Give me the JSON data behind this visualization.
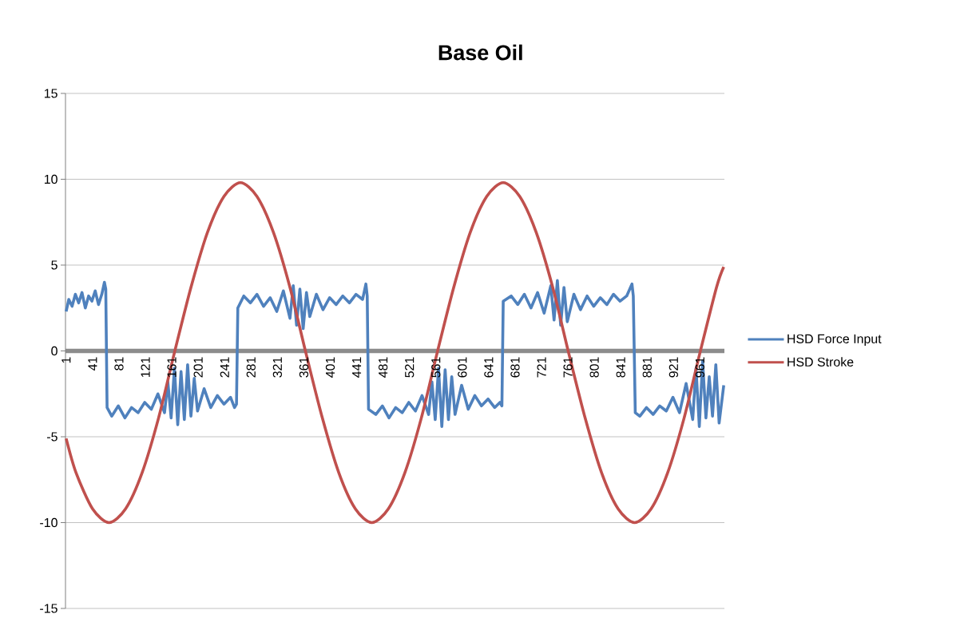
{
  "chart_data": {
    "type": "line",
    "title": "Base Oil",
    "xlim": [
      0,
      998
    ],
    "ylim": [
      -15,
      15
    ],
    "xticks": [
      1,
      41,
      81,
      121,
      161,
      201,
      241,
      281,
      321,
      361,
      401,
      441,
      481,
      521,
      561,
      601,
      641,
      681,
      721,
      761,
      801,
      841,
      881,
      921,
      961
    ],
    "yticks": [
      -15,
      -10,
      -5,
      0,
      5,
      10,
      15
    ],
    "grid": "y",
    "legend": "right",
    "series": [
      {
        "name": "HSD Force Input",
        "color": "#4f81bd",
        "x": [
          1,
          5,
          10,
          15,
          20,
          25,
          30,
          35,
          40,
          45,
          50,
          55,
          59,
          61,
          63,
          70,
          80,
          90,
          100,
          110,
          120,
          130,
          140,
          150,
          155,
          160,
          165,
          170,
          175,
          180,
          185,
          190,
          195,
          200,
          210,
          220,
          230,
          240,
          250,
          256,
          259,
          261,
          270,
          280,
          290,
          300,
          310,
          320,
          330,
          340,
          345,
          350,
          355,
          360,
          365,
          370,
          380,
          390,
          400,
          410,
          420,
          430,
          440,
          450,
          455,
          457,
          459,
          470,
          480,
          490,
          500,
          510,
          520,
          530,
          540,
          550,
          555,
          560,
          565,
          570,
          575,
          580,
          585,
          590,
          600,
          610,
          620,
          630,
          640,
          650,
          658,
          661,
          663,
          675,
          685,
          695,
          705,
          715,
          725,
          735,
          740,
          745,
          750,
          755,
          760,
          770,
          780,
          790,
          800,
          810,
          820,
          830,
          840,
          850,
          858,
          860,
          863,
          870,
          880,
          890,
          900,
          910,
          920,
          930,
          940,
          950,
          955,
          960,
          965,
          970,
          975,
          980,
          985,
          990,
          997
        ],
        "values": [
          2.3,
          3.0,
          2.6,
          3.3,
          2.8,
          3.4,
          2.5,
          3.2,
          2.9,
          3.5,
          2.7,
          3.3,
          4.0,
          3.6,
          -3.3,
          -3.8,
          -3.2,
          -3.9,
          -3.3,
          -3.6,
          -3.0,
          -3.4,
          -2.5,
          -3.6,
          -1.8,
          -3.9,
          -1.0,
          -4.3,
          -1.2,
          -4.0,
          -0.8,
          -3.8,
          -1.6,
          -3.5,
          -2.2,
          -3.3,
          -2.6,
          -3.1,
          -2.7,
          -3.3,
          -3.1,
          2.5,
          3.2,
          2.8,
          3.3,
          2.6,
          3.1,
          2.3,
          3.5,
          1.9,
          3.8,
          1.5,
          3.6,
          1.3,
          3.4,
          2.0,
          3.3,
          2.4,
          3.1,
          2.7,
          3.2,
          2.8,
          3.3,
          3.0,
          3.9,
          3.2,
          -3.4,
          -3.7,
          -3.2,
          -3.9,
          -3.3,
          -3.6,
          -3.0,
          -3.5,
          -2.6,
          -3.7,
          -1.8,
          -4.0,
          -1.0,
          -4.4,
          -1.1,
          -4.0,
          -1.5,
          -3.7,
          -2.0,
          -3.4,
          -2.6,
          -3.2,
          -2.8,
          -3.3,
          -3.0,
          -3.2,
          2.9,
          3.2,
          2.7,
          3.3,
          2.5,
          3.4,
          2.2,
          3.8,
          1.8,
          4.1,
          1.5,
          3.7,
          1.7,
          3.3,
          2.4,
          3.2,
          2.6,
          3.1,
          2.7,
          3.3,
          2.9,
          3.2,
          3.9,
          3.2,
          -3.6,
          -3.8,
          -3.3,
          -3.7,
          -3.2,
          -3.5,
          -2.7,
          -3.6,
          -1.9,
          -4.0,
          -1.0,
          -4.4,
          -0.6,
          -3.9,
          -1.5,
          -3.8,
          -0.8,
          -4.2,
          -2.0
        ]
      },
      {
        "name": "HSD Stroke",
        "color": "#c0504d",
        "x": [
          1,
          16,
          41,
          66,
          91,
          116,
          141,
          165,
          190,
          215,
          240,
          265,
          290,
          315,
          340,
          364,
          389,
          414,
          439,
          464,
          489,
          514,
          539,
          563,
          588,
          613,
          638,
          663,
          688,
          713,
          738,
          762,
          787,
          812,
          837,
          862,
          887,
          912,
          937,
          961,
          986,
          997
        ],
        "values": [
          -5.1,
          -7.1,
          -9.2,
          -10,
          -9.2,
          -7.1,
          -3.9,
          -0.1,
          3.7,
          6.9,
          9.0,
          9.8,
          9.0,
          6.9,
          3.7,
          -0.1,
          -3.9,
          -7.1,
          -9.2,
          -10,
          -9.2,
          -7.1,
          -3.9,
          -0.1,
          3.7,
          6.9,
          9.0,
          9.8,
          9.0,
          6.9,
          3.7,
          -0.1,
          -3.9,
          -7.1,
          -9.2,
          -10,
          -9.2,
          -7.1,
          -3.9,
          -0.1,
          3.7,
          4.9
        ]
      }
    ]
  }
}
